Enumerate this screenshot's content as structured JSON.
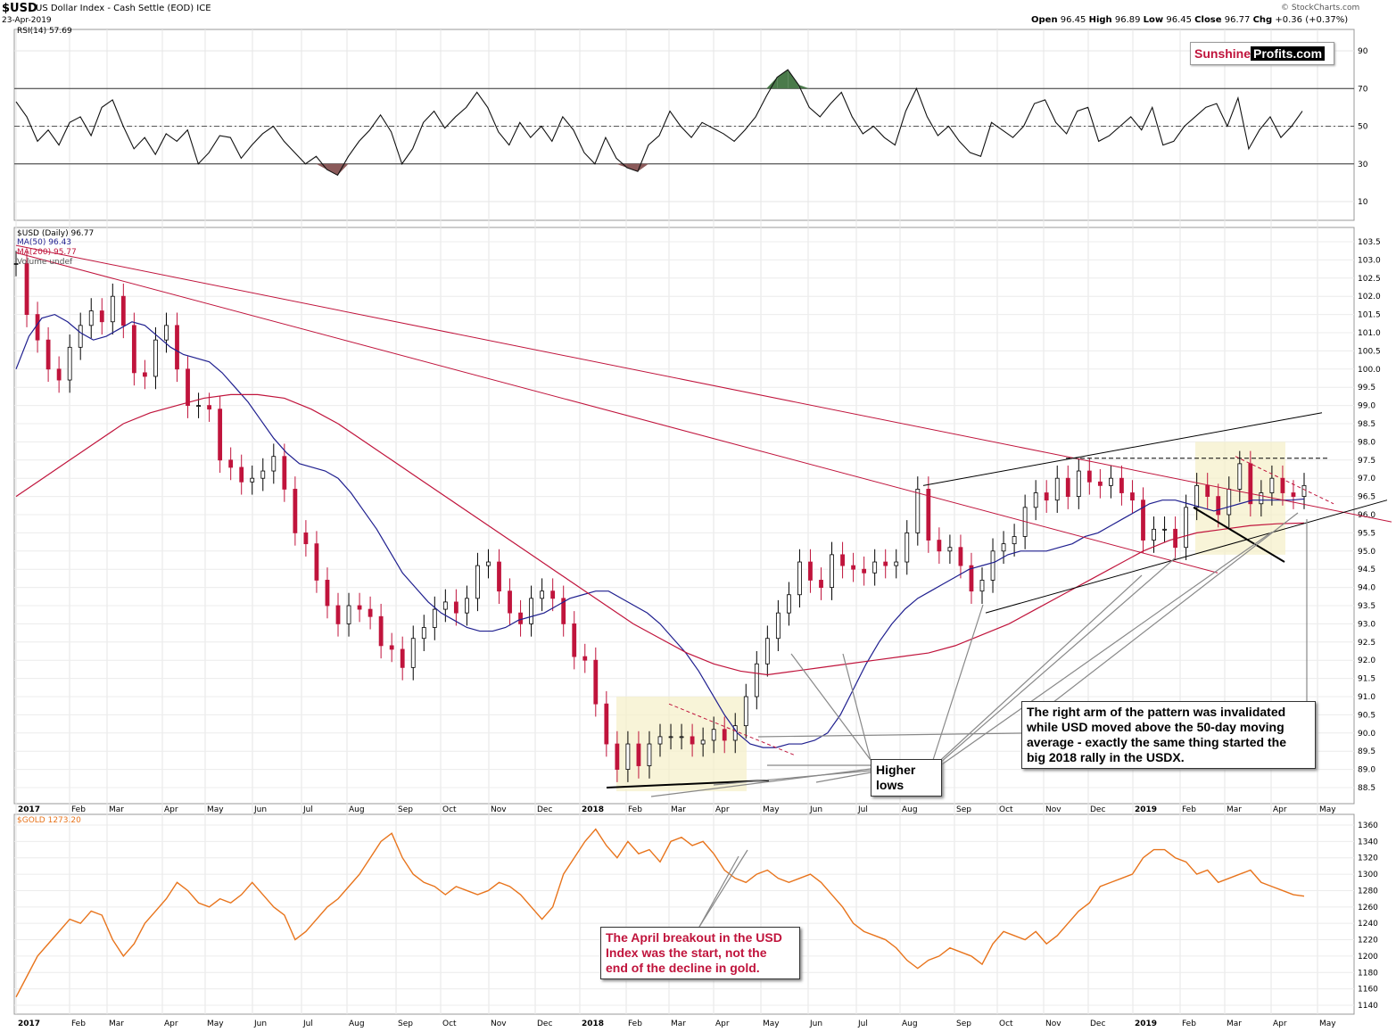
{
  "header": {
    "symbol": "$USD",
    "name": "US Dollar Index - Cash Settle (EOD) ICE",
    "date": "23-Apr-2019",
    "credit": "© StockCharts.com",
    "ohlc": {
      "open_label": "Open",
      "open": "96.45",
      "high_label": "High",
      "high": "96.89",
      "low_label": "Low",
      "low": "96.45",
      "close_label": "Close",
      "close": "96.77",
      "chg_label": "Chg",
      "chg": "+0.36 (+0.37%)"
    }
  },
  "logo": {
    "part1": "Sunshine",
    "part2": "Profits.com"
  },
  "rsi_panel": {
    "label": "RSI(14) 57.69"
  },
  "price_panel": {
    "label": "$USD (Daily) 96.77",
    "ma50_label": "MA(50) 96.43",
    "ma200_label": "MA(200) 95.77",
    "volume_label": "Volume undef"
  },
  "gold_panel": {
    "label": "$GOLD 1273.20"
  },
  "annotations": {
    "higher_lows": "Higher lows",
    "right_arm": [
      "The right arm of the pattern was invalidated",
      "while USD moved above the 50-day moving",
      "average - exactly the same thing started the",
      "big 2018 rally in the USDX."
    ],
    "april_breakout": [
      "The April breakout in the USD",
      "Index was the start, not the",
      "end of the decline in gold."
    ]
  },
  "colors": {
    "up_candle": "#000000",
    "down_candle": "#c0143c",
    "ma50": "#1f1f8f",
    "ma200": "#c0143c",
    "gold_line": "#e8741c",
    "rsi_overbought_fill": "#4a7a4a",
    "rsi_oversold_fill": "#8b5a5a",
    "highlight_box": "#f5f0c8",
    "annotation_red": "#c0143c"
  },
  "chart_data": [
    {
      "type": "line",
      "title": "RSI(14) 57.69",
      "y_ticks": [
        10,
        30,
        50,
        70,
        90
      ],
      "ylim": [
        0,
        100
      ],
      "x": [
        "2017-01-03",
        "2017-01-10",
        "2017-01-17",
        "2017-01-24",
        "2017-01-31",
        "2017-02-07",
        "2017-02-14",
        "2017-02-21",
        "2017-02-28",
        "2017-03-07",
        "2017-03-14",
        "2017-03-21",
        "2017-03-28",
        "2017-04-04",
        "2017-04-11",
        "2017-04-18",
        "2017-04-25",
        "2017-05-02",
        "2017-05-09",
        "2017-05-16",
        "2017-05-23",
        "2017-05-30",
        "2017-06-06",
        "2017-06-13",
        "2017-06-20",
        "2017-06-27",
        "2017-07-04",
        "2017-07-11",
        "2017-07-18",
        "2017-07-25",
        "2017-08-01",
        "2017-08-08",
        "2017-08-15",
        "2017-08-22",
        "2017-08-29",
        "2017-09-05",
        "2017-09-12",
        "2017-09-19",
        "2017-09-26",
        "2017-10-03",
        "2017-10-10",
        "2017-10-17",
        "2017-10-24",
        "2017-10-31",
        "2017-11-07",
        "2017-11-14",
        "2017-11-21",
        "2017-11-28",
        "2017-12-05",
        "2017-12-12",
        "2017-12-19",
        "2017-12-26",
        "2018-01-02",
        "2018-01-09",
        "2018-01-16",
        "2018-01-23",
        "2018-01-30",
        "2018-02-06",
        "2018-02-13",
        "2018-02-20",
        "2018-02-27",
        "2018-03-06",
        "2018-03-13",
        "2018-03-20",
        "2018-03-27",
        "2018-04-03",
        "2018-04-10",
        "2018-04-17",
        "2018-04-24",
        "2018-05-01",
        "2018-05-08",
        "2018-05-15",
        "2018-05-22",
        "2018-05-29",
        "2018-06-05",
        "2018-06-12",
        "2018-06-19",
        "2018-06-26",
        "2018-07-03",
        "2018-07-10",
        "2018-07-17",
        "2018-07-24",
        "2018-07-31",
        "2018-08-07",
        "2018-08-14",
        "2018-08-21",
        "2018-08-28",
        "2018-09-04",
        "2018-09-11",
        "2018-09-18",
        "2018-09-25",
        "2018-10-02",
        "2018-10-09",
        "2018-10-16",
        "2018-10-23",
        "2018-10-30",
        "2018-11-06",
        "2018-11-13",
        "2018-11-20",
        "2018-11-27",
        "2018-12-04",
        "2018-12-11",
        "2018-12-18",
        "2018-12-25",
        "2019-01-01",
        "2019-01-08",
        "2019-01-15",
        "2019-01-22",
        "2019-01-29",
        "2019-02-05",
        "2019-02-12",
        "2019-02-19",
        "2019-02-26",
        "2019-03-05",
        "2019-03-12",
        "2019-03-19",
        "2019-03-26",
        "2019-04-02",
        "2019-04-09",
        "2019-04-16",
        "2019-04-23"
      ],
      "series": [
        {
          "values": [
            63,
            55,
            42,
            48,
            40,
            52,
            55,
            45,
            60,
            64,
            50,
            38,
            44,
            35,
            46,
            42,
            48,
            30,
            36,
            45,
            44,
            33,
            40,
            46,
            50,
            42,
            36,
            30,
            34,
            27,
            24,
            34,
            42,
            48,
            56,
            47,
            30,
            38,
            52,
            58,
            49,
            55,
            60,
            68,
            60,
            47,
            40,
            52,
            44,
            50,
            42,
            55,
            48,
            36,
            30,
            44,
            33,
            28,
            26,
            40,
            45,
            58,
            50,
            44,
            52,
            49,
            46,
            42,
            48,
            55,
            66,
            76,
            80,
            72,
            60,
            55,
            62,
            68,
            55,
            46,
            50,
            44,
            40,
            58,
            70,
            55,
            45,
            50,
            42,
            36,
            34,
            52,
            48,
            44,
            50,
            62,
            64,
            52,
            46,
            58,
            60,
            42,
            45,
            50,
            55,
            48,
            60,
            40,
            42,
            50,
            55,
            60,
            62,
            50,
            65,
            38,
            48,
            55,
            44,
            50,
            58
          ]
        }
      ]
    },
    {
      "type": "line",
      "title": "$USD (Daily) 96.77",
      "y_ticks": [
        88.5,
        89.0,
        89.5,
        90.0,
        90.5,
        91.0,
        91.5,
        92.0,
        92.5,
        93.0,
        93.5,
        94.0,
        94.5,
        95.0,
        95.5,
        96.0,
        96.5,
        97.0,
        97.5,
        98.0,
        98.5,
        99.0,
        99.5,
        100.0,
        100.5,
        101.0,
        101.5,
        102.0,
        102.5,
        103.0,
        103.5
      ],
      "ylim": [
        88.0,
        104.0
      ],
      "x_tick_labels": [
        "2017",
        "Feb",
        "Mar",
        "Apr",
        "May",
        "Jun",
        "Jul",
        "Aug",
        "Sep",
        "Oct",
        "Nov",
        "Dec",
        "2018",
        "Feb",
        "Mar",
        "Apr",
        "May",
        "Jun",
        "Jul",
        "Aug",
        "Sep",
        "Oct",
        "Nov",
        "Dec",
        "2019",
        "Feb",
        "Mar",
        "Apr",
        "May"
      ],
      "series": [
        {
          "name": "$USD",
          "values": [
            102.9,
            101.5,
            100.8,
            100.0,
            99.7,
            100.6,
            101.2,
            101.6,
            101.3,
            102.0,
            101.2,
            99.9,
            99.8,
            100.8,
            101.2,
            100.0,
            99.0,
            99.0,
            98.9,
            97.5,
            97.3,
            96.9,
            97.0,
            97.2,
            97.6,
            96.7,
            95.5,
            95.2,
            94.2,
            93.5,
            93.0,
            93.5,
            93.4,
            93.2,
            92.4,
            92.3,
            91.8,
            92.6,
            92.9,
            93.4,
            93.6,
            93.3,
            93.7,
            94.6,
            94.7,
            93.9,
            93.3,
            93.0,
            93.7,
            93.9,
            93.7,
            93.0,
            92.1,
            92.0,
            90.8,
            89.7,
            89.0,
            89.7,
            89.1,
            89.7,
            89.9,
            89.9,
            89.9,
            89.7,
            89.8,
            90.1,
            89.8,
            90.2,
            91.0,
            91.9,
            92.6,
            93.3,
            93.8,
            94.7,
            94.2,
            94.0,
            94.9,
            94.6,
            94.5,
            94.4,
            94.7,
            94.6,
            94.7,
            95.5,
            96.7,
            95.3,
            95.0,
            95.1,
            94.6,
            93.9,
            94.2,
            95.0,
            95.2,
            95.4,
            96.2,
            96.6,
            96.4,
            97.0,
            96.5,
            97.2,
            96.9,
            96.8,
            97.0,
            96.6,
            96.4,
            95.3,
            95.6,
            95.6,
            95.1,
            96.2,
            96.8,
            96.5,
            96.0,
            96.7,
            97.4,
            96.3,
            96.6,
            97.0,
            96.6,
            96.5,
            96.8
          ]
        },
        {
          "name": "MA(50) 96.43",
          "values": [
            100.0,
            100.9,
            101.4,
            101.5,
            101.3,
            101.0,
            100.8,
            100.9,
            101.1,
            101.3,
            101.2,
            100.9,
            100.6,
            100.4,
            100.3,
            100.2,
            99.9,
            99.5,
            99.1,
            98.6,
            98.1,
            97.7,
            97.4,
            97.3,
            97.2,
            97.0,
            96.6,
            96.1,
            95.6,
            95.0,
            94.4,
            94.0,
            93.6,
            93.3,
            93.1,
            92.9,
            92.8,
            92.8,
            92.9,
            93.1,
            93.2,
            93.3,
            93.5,
            93.7,
            93.8,
            93.9,
            93.9,
            93.7,
            93.5,
            93.3,
            93.0,
            92.6,
            92.2,
            91.7,
            91.1,
            90.5,
            90.0,
            89.7,
            89.6,
            89.6,
            89.7,
            89.7,
            89.8,
            90.0,
            90.5,
            91.2,
            91.9,
            92.5,
            93.0,
            93.4,
            93.7,
            93.9,
            94.1,
            94.3,
            94.5,
            94.6,
            94.7,
            94.9,
            95.0,
            95.0,
            95.0,
            95.1,
            95.2,
            95.4,
            95.5,
            95.7,
            95.9,
            96.1,
            96.3,
            96.4,
            96.4,
            96.3,
            96.2,
            96.1,
            96.2,
            96.3,
            96.4,
            96.4,
            96.4,
            96.4,
            96.43
          ]
        },
        {
          "name": "MA(200) 95.77",
          "values": [
            96.5,
            97.0,
            97.5,
            98.0,
            98.5,
            98.8,
            99.0,
            99.2,
            99.3,
            99.3,
            99.2,
            98.9,
            98.5,
            98.0,
            97.5,
            97.0,
            96.5,
            96.0,
            95.5,
            95.0,
            94.5,
            94.0,
            93.5,
            93.0,
            92.6,
            92.2,
            91.9,
            91.7,
            91.6,
            91.7,
            91.8,
            91.9,
            92.0,
            92.1,
            92.2,
            92.4,
            92.7,
            93.0,
            93.4,
            93.8,
            94.2,
            94.6,
            95.0,
            95.3,
            95.5,
            95.6,
            95.7,
            95.75,
            95.77
          ]
        }
      ],
      "annotations": [
        "Higher lows",
        "The right arm of the pattern was invalidated while USD moved above the 50-day moving average - exactly the same thing started the big 2018 rally in the USDX."
      ]
    },
    {
      "type": "line",
      "title": "$GOLD 1273.20",
      "y_ticks": [
        1140,
        1160,
        1180,
        1200,
        1220,
        1240,
        1260,
        1280,
        1300,
        1320,
        1340,
        1360
      ],
      "ylim": [
        1130,
        1370
      ],
      "series": [
        {
          "name": "$GOLD",
          "values": [
            1150,
            1175,
            1200,
            1215,
            1230,
            1245,
            1240,
            1255,
            1250,
            1220,
            1200,
            1215,
            1240,
            1255,
            1270,
            1290,
            1280,
            1265,
            1260,
            1270,
            1265,
            1275,
            1290,
            1275,
            1260,
            1250,
            1220,
            1230,
            1245,
            1260,
            1270,
            1285,
            1300,
            1320,
            1340,
            1350,
            1320,
            1300,
            1290,
            1285,
            1275,
            1285,
            1280,
            1275,
            1280,
            1290,
            1285,
            1275,
            1260,
            1245,
            1260,
            1300,
            1320,
            1340,
            1355,
            1335,
            1320,
            1340,
            1325,
            1330,
            1315,
            1340,
            1345,
            1335,
            1340,
            1325,
            1305,
            1295,
            1290,
            1300,
            1305,
            1295,
            1290,
            1295,
            1300,
            1290,
            1275,
            1260,
            1240,
            1230,
            1225,
            1220,
            1210,
            1195,
            1185,
            1195,
            1200,
            1210,
            1205,
            1200,
            1190,
            1215,
            1230,
            1225,
            1220,
            1230,
            1215,
            1225,
            1240,
            1255,
            1265,
            1285,
            1290,
            1295,
            1300,
            1320,
            1330,
            1330,
            1320,
            1315,
            1300,
            1305,
            1290,
            1295,
            1300,
            1305,
            1290,
            1285,
            1280,
            1275,
            1273.2
          ]
        }
      ],
      "annotations": [
        "The April breakout in the USD Index was the start, not the end of the decline in gold."
      ]
    }
  ]
}
